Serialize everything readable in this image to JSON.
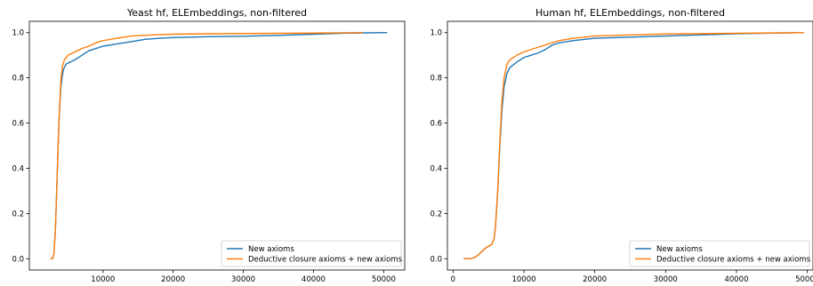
{
  "colors": {
    "new_axioms": "#1f77b4",
    "closure": "#ff7f0e",
    "axes": "#000000",
    "legend_border": "#cccccc"
  },
  "chart_data": [
    {
      "type": "line",
      "title": "Yeast hf, ELEmbeddings, non-filtered",
      "xlabel": "",
      "ylabel": "",
      "xlim": [
        -500,
        53000
      ],
      "ylim": [
        -0.05,
        1.05
      ],
      "xticks": [
        10000,
        20000,
        30000,
        40000,
        50000
      ],
      "xtick_labels": [
        "10000",
        "20000",
        "30000",
        "40000",
        "50000"
      ],
      "yticks": [
        0.0,
        0.2,
        0.4,
        0.6,
        0.8,
        1.0
      ],
      "ytick_labels": [
        "0.0",
        "0.2",
        "0.4",
        "0.6",
        "0.8",
        "1.0"
      ],
      "grid": false,
      "legend_position": "lower-right",
      "series": [
        {
          "name": "New axioms",
          "color_key": "new_axioms",
          "points": [
            [
              2500,
              0.0
            ],
            [
              2800,
              0.0
            ],
            [
              3000,
              0.02
            ],
            [
              3200,
              0.12
            ],
            [
              3400,
              0.3
            ],
            [
              3600,
              0.5
            ],
            [
              3800,
              0.66
            ],
            [
              4000,
              0.76
            ],
            [
              4200,
              0.81
            ],
            [
              4400,
              0.84
            ],
            [
              4700,
              0.86
            ],
            [
              5000,
              0.865
            ],
            [
              6000,
              0.88
            ],
            [
              7000,
              0.9
            ],
            [
              8000,
              0.92
            ],
            [
              9000,
              0.93
            ],
            [
              10000,
              0.94
            ],
            [
              12000,
              0.95
            ],
            [
              14000,
              0.96
            ],
            [
              16000,
              0.97
            ],
            [
              18000,
              0.975
            ],
            [
              20000,
              0.978
            ],
            [
              25000,
              0.982
            ],
            [
              30000,
              0.984
            ],
            [
              35000,
              0.988
            ],
            [
              40000,
              0.993
            ],
            [
              45000,
              0.998
            ],
            [
              50500,
              1.0
            ]
          ]
        },
        {
          "name": "Deductive closure axioms + new axioms",
          "color_key": "closure",
          "points": [
            [
              2500,
              0.0
            ],
            [
              2800,
              0.0
            ],
            [
              3000,
              0.02
            ],
            [
              3200,
              0.12
            ],
            [
              3400,
              0.3
            ],
            [
              3600,
              0.5
            ],
            [
              3800,
              0.67
            ],
            [
              4000,
              0.79
            ],
            [
              4200,
              0.85
            ],
            [
              4500,
              0.88
            ],
            [
              5000,
              0.9
            ],
            [
              6000,
              0.915
            ],
            [
              7000,
              0.93
            ],
            [
              8000,
              0.94
            ],
            [
              9000,
              0.955
            ],
            [
              10000,
              0.965
            ],
            [
              12000,
              0.975
            ],
            [
              14000,
              0.985
            ],
            [
              17000,
              0.99
            ],
            [
              20000,
              0.993
            ],
            [
              25000,
              0.995
            ],
            [
              30000,
              0.996
            ],
            [
              40000,
              0.998
            ],
            [
              47000,
              1.0
            ]
          ]
        }
      ]
    },
    {
      "type": "line",
      "title": "Human hf, ELEmbeddings, non-filtered",
      "xlabel": "",
      "ylabel": "",
      "xlim": [
        -800,
        50800
      ],
      "ylim": [
        -0.05,
        1.05
      ],
      "xticks": [
        0,
        10000,
        20000,
        30000,
        40000,
        50000
      ],
      "xtick_labels": [
        "0",
        "10000",
        "20000",
        "30000",
        "40000",
        "50000"
      ],
      "yticks": [
        0.0,
        0.2,
        0.4,
        0.6,
        0.8,
        1.0
      ],
      "ytick_labels": [
        "0.0",
        "0.2",
        "0.4",
        "0.6",
        "0.8",
        "1.0"
      ],
      "grid": false,
      "legend_position": "lower-right",
      "series": [
        {
          "name": "New axioms",
          "color_key": "new_axioms",
          "points": [
            [
              1500,
              0.0
            ],
            [
              2500,
              0.0
            ],
            [
              3000,
              0.005
            ],
            [
              3500,
              0.015
            ],
            [
              4000,
              0.03
            ],
            [
              4500,
              0.045
            ],
            [
              5000,
              0.055
            ],
            [
              5500,
              0.065
            ],
            [
              5800,
              0.09
            ],
            [
              6000,
              0.15
            ],
            [
              6300,
              0.3
            ],
            [
              6600,
              0.5
            ],
            [
              6900,
              0.66
            ],
            [
              7200,
              0.76
            ],
            [
              7600,
              0.82
            ],
            [
              8000,
              0.845
            ],
            [
              9000,
              0.87
            ],
            [
              10000,
              0.89
            ],
            [
              11000,
              0.9
            ],
            [
              12000,
              0.91
            ],
            [
              13000,
              0.925
            ],
            [
              14000,
              0.945
            ],
            [
              15000,
              0.955
            ],
            [
              17000,
              0.965
            ],
            [
              20000,
              0.975
            ],
            [
              25000,
              0.98
            ],
            [
              30000,
              0.985
            ],
            [
              35000,
              0.99
            ],
            [
              40000,
              0.995
            ],
            [
              45000,
              0.998
            ],
            [
              49500,
              1.0
            ]
          ]
        },
        {
          "name": "Deductive closure axioms + new axioms",
          "color_key": "closure",
          "points": [
            [
              1500,
              0.0
            ],
            [
              2500,
              0.0
            ],
            [
              3000,
              0.005
            ],
            [
              3500,
              0.015
            ],
            [
              4000,
              0.03
            ],
            [
              4500,
              0.045
            ],
            [
              5000,
              0.055
            ],
            [
              5500,
              0.065
            ],
            [
              5800,
              0.09
            ],
            [
              6000,
              0.15
            ],
            [
              6300,
              0.3
            ],
            [
              6600,
              0.52
            ],
            [
              6900,
              0.7
            ],
            [
              7200,
              0.8
            ],
            [
              7600,
              0.86
            ],
            [
              8000,
              0.88
            ],
            [
              9000,
              0.9
            ],
            [
              10000,
              0.915
            ],
            [
              12000,
              0.935
            ],
            [
              14000,
              0.955
            ],
            [
              15000,
              0.965
            ],
            [
              17000,
              0.975
            ],
            [
              20000,
              0.985
            ],
            [
              25000,
              0.99
            ],
            [
              30000,
              0.994
            ],
            [
              40000,
              0.997
            ],
            [
              49500,
              1.0
            ]
          ]
        }
      ]
    }
  ]
}
